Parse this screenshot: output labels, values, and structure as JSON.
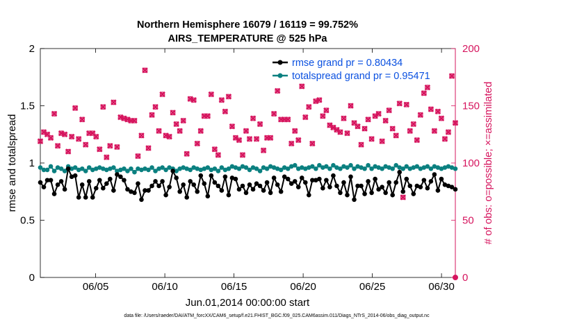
{
  "chart_data": {
    "type": "line",
    "title": "Northern Hemisphere 16079 / 16119 = 99.752%",
    "subtitle": "AIRS_TEMPERATURE @ 525 hPa",
    "xlabel": "Jun.01,2014 00:00:00 start",
    "ylabel_left": "rmse and totalspread",
    "ylabel_right": "# of obs: o=possible; ×=assimilated",
    "footer": "data file: /Users/raeder/DAI/ATM_forcXX/CAM6_setup/f.e21.FHIST_BGC.f09_025.CAM6assim.011/Diags_NTrS_2014-06/obs_diag_output.nc",
    "x_range_days": [
      1,
      31
    ],
    "ylim_left": [
      0,
      2
    ],
    "ylim_right": [
      0,
      200
    ],
    "yticks_left": [
      "0",
      "0.5",
      "1",
      "1.5",
      "2"
    ],
    "yticks_right": [
      "0",
      "50",
      "100",
      "150",
      "200"
    ],
    "xticks": [
      {
        "day": 5,
        "label": "06/05"
      },
      {
        "day": 10,
        "label": "06/10"
      },
      {
        "day": 15,
        "label": "06/15"
      },
      {
        "day": 20,
        "label": "06/20"
      },
      {
        "day": 25,
        "label": "06/25"
      },
      {
        "day": 30,
        "label": "06/30"
      }
    ],
    "colors": {
      "rmse": "#000000",
      "totalspread": "#0b8080",
      "obs": "#d6155e",
      "right_axis": "#d6155e",
      "legend_text": "#0a50e0"
    },
    "series": [
      {
        "name": "rmse",
        "legend": "rmse grand pr = 0.80434",
        "values": [
          0.83,
          0.79,
          0.85,
          0.85,
          0.73,
          0.81,
          0.84,
          0.77,
          0.95,
          0.88,
          0.89,
          0.7,
          0.81,
          0.7,
          0.84,
          0.7,
          0.78,
          0.85,
          0.78,
          0.82,
          0.86,
          0.76,
          0.9,
          0.88,
          0.85,
          0.77,
          0.75,
          0.74,
          0.82,
          0.68,
          0.76,
          0.76,
          0.8,
          0.84,
          0.8,
          0.84,
          0.72,
          0.79,
          0.93,
          0.87,
          0.75,
          0.81,
          0.7,
          0.84,
          0.81,
          0.75,
          0.89,
          0.82,
          0.71,
          0.89,
          0.83,
          0.8,
          0.76,
          0.88,
          0.72,
          0.87,
          0.86,
          0.77,
          0.8,
          0.74,
          0.81,
          0.77,
          0.82,
          0.8,
          0.76,
          0.83,
          0.74,
          0.87,
          0.81,
          0.75,
          0.88,
          0.86,
          0.82,
          0.84,
          0.79,
          0.87,
          0.83,
          0.72,
          0.85,
          0.85,
          0.86,
          0.78,
          0.85,
          0.79,
          0.89,
          0.8,
          0.74,
          0.83,
          0.72,
          0.88,
          0.68,
          0.8,
          0.8,
          0.73,
          0.84,
          0.74,
          0.86,
          0.77,
          0.79,
          0.74,
          0.83,
          0.72,
          0.83,
          0.92,
          0.75,
          0.86,
          0.8,
          0.73,
          0.8,
          0.79,
          0.85,
          0.78,
          0.84,
          0.9,
          0.76,
          0.86,
          0.81,
          0.8,
          0.79,
          0.77
        ]
      },
      {
        "name": "totalspread",
        "legend": "totalspread grand pr = 0.95471",
        "values": [
          0.96,
          0.94,
          0.94,
          0.97,
          0.93,
          0.96,
          0.95,
          0.93,
          0.97,
          0.95,
          0.96,
          0.94,
          0.95,
          0.93,
          0.96,
          0.94,
          0.95,
          0.96,
          0.95,
          0.94,
          0.95,
          0.96,
          0.93,
          0.94,
          0.95,
          0.93,
          0.95,
          0.92,
          0.95,
          0.94,
          0.95,
          0.94,
          0.96,
          0.93,
          0.95,
          0.96,
          0.94,
          0.96,
          0.95,
          0.93,
          0.95,
          0.96,
          0.95,
          0.94,
          0.96,
          0.95,
          0.94,
          0.95,
          0.96,
          0.94,
          0.95,
          0.93,
          0.96,
          0.94,
          0.95,
          0.97,
          0.96,
          0.95,
          0.97,
          0.96,
          0.94,
          0.96,
          0.95,
          0.93,
          0.96,
          0.95,
          0.97,
          0.96,
          0.95,
          0.94,
          0.96,
          0.95,
          0.97,
          0.98,
          0.95,
          0.96,
          0.95,
          0.96,
          0.97,
          0.95,
          0.98,
          0.96,
          0.97,
          0.95,
          0.98,
          0.96,
          0.95,
          0.97,
          0.96,
          0.98,
          0.95,
          0.97,
          0.96,
          0.95,
          0.98,
          0.95,
          0.97,
          0.96,
          0.95,
          0.97,
          0.96,
          0.95,
          0.98,
          0.96,
          0.95,
          0.97,
          0.95,
          0.96,
          0.97,
          0.95,
          0.96,
          0.97,
          0.95,
          0.97,
          0.96,
          0.95,
          0.96,
          0.97,
          0.96,
          0.95
        ]
      },
      {
        "name": "obs",
        "legend": "",
        "values": [
          119,
          127,
          125,
          122,
          143,
          115,
          126,
          125,
          110,
          123,
          148,
          121,
          138,
          116,
          126,
          126,
          123,
          112,
          149,
          105,
          115,
          153,
          114,
          140,
          139,
          138,
          137,
          137,
          106,
          124,
          181,
          113,
          142,
          149,
          128,
          160,
          124,
          123,
          144,
          134,
          128,
          137,
          108,
          156,
          155,
          117,
          128,
          141,
          141,
          160,
          112,
          107,
          155,
          145,
          158,
          132,
          122,
          120,
          107,
          128,
          121,
          139,
          121,
          134,
          111,
          122,
          122,
          143,
          163,
          138,
          138,
          138,
          117,
          128,
          120,
          167,
          140,
          149,
          117,
          154,
          155,
          141,
          146,
          133,
          131,
          129,
          127,
          139,
          126,
          150,
          135,
          132,
          116,
          130,
          138,
          121,
          141,
          143,
          119,
          137,
          146,
          130,
          124,
          152,
          70,
          151,
          128,
          134,
          120,
          142,
          161,
          166,
          147,
          128,
          145,
          139,
          121,
          127,
          176,
          135
        ]
      }
    ],
    "legend_location": "top-right"
  }
}
